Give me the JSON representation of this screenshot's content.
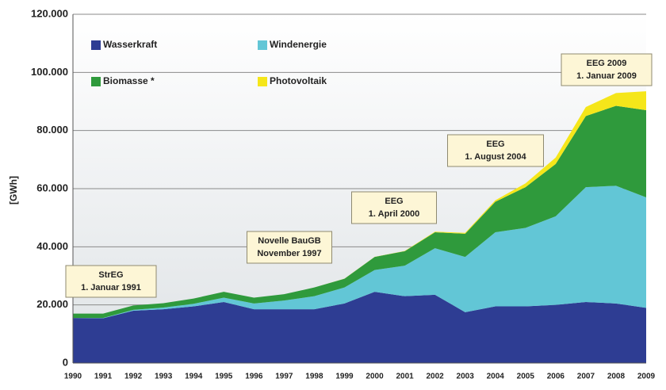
{
  "chart_data": {
    "type": "stacked-area",
    "y_label": "[GWh]",
    "categories": [
      "1990",
      "1991",
      "1992",
      "1993",
      "1994",
      "1995",
      "1996",
      "1997",
      "1998",
      "1999",
      "2000",
      "2001",
      "2002",
      "2003",
      "2004",
      "2005",
      "2006",
      "2007",
      "2008",
      "2009"
    ],
    "series": [
      {
        "name": "Wasserkraft",
        "color": "#2e3d93",
        "values": [
          15500,
          15400,
          18000,
          18500,
          19500,
          21000,
          18500,
          18500,
          18500,
          20500,
          24500,
          23000,
          23500,
          17500,
          19500,
          19500,
          20000,
          21000,
          20500,
          19000
        ]
      },
      {
        "name": "Windenergie",
        "color": "#62c6d6",
        "values": [
          0,
          100,
          300,
          600,
          900,
          1500,
          2000,
          3000,
          4500,
          5500,
          7500,
          10500,
          16000,
          19000,
          25500,
          27000,
          30500,
          39500,
          40500,
          38000
        ]
      },
      {
        "name": "Biomasse *",
        "color": "#2f9a3c",
        "values": [
          1500,
          1500,
          1500,
          1500,
          1800,
          2000,
          2000,
          2200,
          3000,
          3000,
          4500,
          5000,
          5500,
          8000,
          10500,
          14000,
          18000,
          24500,
          27500,
          30000
        ]
      },
      {
        "name": "Photovoltaik",
        "color": "#f5e61a",
        "values": [
          0,
          0,
          0,
          0,
          0,
          0,
          0,
          0,
          10,
          30,
          60,
          80,
          200,
          300,
          500,
          1300,
          2200,
          3100,
          4400,
          6500
        ]
      }
    ],
    "ylim": [
      0,
      120000
    ],
    "yticks": [
      {
        "value": 0,
        "label": "0"
      },
      {
        "value": 20000,
        "label": "20.000"
      },
      {
        "value": 40000,
        "label": "40.000"
      },
      {
        "value": 60000,
        "label": "60.000"
      },
      {
        "value": 80000,
        "label": "80.000"
      },
      {
        "value": 100000,
        "label": "100.000"
      },
      {
        "value": 120000,
        "label": "120.000"
      }
    ],
    "grid": true,
    "annotations": [
      {
        "lines": [
          "StrEG",
          "1. Januar 1991"
        ]
      },
      {
        "lines": [
          "Novelle BauGB",
          "November 1997"
        ]
      },
      {
        "lines": [
          "EEG",
          "1. April 2000"
        ]
      },
      {
        "lines": [
          "EEG",
          "1. August  2004"
        ]
      },
      {
        "lines": [
          "EEG 2009",
          "1. Januar 2009"
        ]
      }
    ]
  }
}
